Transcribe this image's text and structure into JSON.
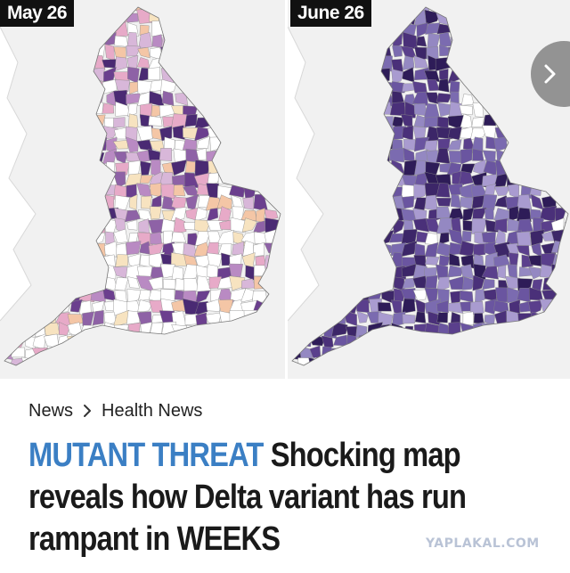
{
  "maps": {
    "left": {
      "date": "May 26"
    },
    "right": {
      "date": "June 26"
    }
  },
  "carousel": {
    "next_icon": "chevron-right-icon"
  },
  "breadcrumb": {
    "items": [
      "News",
      "Health News"
    ],
    "separator_icon": "chevron-right-icon"
  },
  "headline": {
    "kicker": "MUTANT THREAT",
    "text": "Shocking map reveals how Delta variant has run rampant in WEEKS"
  },
  "watermark": "YAPLAKAL.COM",
  "colors": {
    "kicker": "#3b7fc4",
    "label_bg": "#111111",
    "map_bg": "#f1f1f1",
    "may_palette": [
      "#ffffff",
      "#f7e3c0",
      "#f4c6a6",
      "#e7aac8",
      "#d8b7d9",
      "#b98ac3",
      "#8e62a6",
      "#6b3f8e",
      "#4a2a73"
    ],
    "june_palette": [
      "#5a3f8c",
      "#4a3079",
      "#3c2668",
      "#2e1c58",
      "#6a55a0",
      "#7b6bb0",
      "#9488c2",
      "#a99bd0",
      "#ffffff"
    ]
  }
}
